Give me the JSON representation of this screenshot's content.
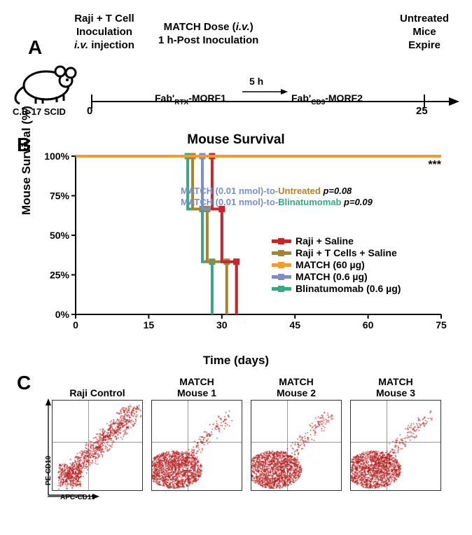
{
  "panelA": {
    "label": "A",
    "mouse_label": "C.B-17 SCID",
    "left_event": {
      "l1": "Raji + T Cell",
      "l2": "Inoculation",
      "l3": "i.v. injection",
      "html": "Raji + T Cell<br>Inoculation<br><span style=\"font-style:italic\">i.v.</span> injection"
    },
    "mid_event": {
      "l1": "MATCH Dose (i.v.)",
      "l2": "1 h-Post Inoculation",
      "html": "MATCH Dose (<span style=\"font-style:italic\">i.v.</span>)<br>1 h-Post Inoculation"
    },
    "right_event": {
      "l1": "Untreated",
      "l2": "Mice",
      "l3": "Expire",
      "html": "Untreated<br>Mice<br>Expire"
    },
    "rxn_left": "Fab'",
    "rxn_left_sub": "RTX",
    "rxn_left_tail": "-MORF1",
    "rxn_right": "Fab'",
    "rxn_right_sub": "CD3",
    "rxn_right_tail": "-MORF2",
    "rxn_time": "5 h",
    "t0": "0",
    "t1": "25",
    "mouse_color": "#000000",
    "timeline_color": "#000000"
  },
  "panelB": {
    "label": "B",
    "title": "Mouse Survival",
    "ylab": "Mouse Survival (%)",
    "xlab": "Time (days)",
    "xlim": [
      0,
      75
    ],
    "ylim": [
      0,
      100
    ],
    "xticks": [
      0,
      15,
      30,
      45,
      60,
      75
    ],
    "yticks": [
      0,
      25,
      50,
      75,
      100
    ],
    "yticklabels": [
      "0%",
      "25%",
      "50%",
      "75%",
      "100%"
    ],
    "axis_color": "#000000",
    "tick_fontsize": 14,
    "stars": "***",
    "stars_color": "#000000",
    "anno1": {
      "pre": "MATCH (0.01 nmol)-to-",
      "mid": "Untreated",
      "post": " p=0.08",
      "pre_color": "#7b8ec6",
      "mid_color": "#a8842c"
    },
    "anno2": {
      "pre": "MATCH (0.01 nmol)-to-",
      "mid": "Blinatumomab",
      "post": " p=0.09",
      "pre_color": "#7b8ec6",
      "mid_color": "#3aa781"
    },
    "legend": [
      {
        "label": "Raji + Saline",
        "color": "#c8262a"
      },
      {
        "label": "Raji + T Cells + Saline",
        "color": "#a8842c"
      },
      {
        "label": "MATCH (60 µg)",
        "color": "#f39b2f"
      },
      {
        "label": "MATCH (0.6 µg)",
        "color": "#7b8ec6"
      },
      {
        "label": "Blinatumomab (0.6 µg)",
        "color": "#3aa781"
      }
    ],
    "series": {
      "raji_saline": {
        "color": "#c8262a",
        "steps": [
          [
            0,
            100
          ],
          [
            28,
            100
          ],
          [
            28,
            66.6
          ],
          [
            30,
            66.6
          ],
          [
            30,
            33.3
          ],
          [
            33,
            33.3
          ],
          [
            33,
            0
          ]
        ]
      },
      "raji_t_saline": {
        "color": "#a8842c",
        "steps": [
          [
            0,
            100
          ],
          [
            24,
            100
          ],
          [
            24,
            66.6
          ],
          [
            27,
            66.6
          ],
          [
            27,
            33.3
          ],
          [
            31,
            33.3
          ],
          [
            31,
            0
          ]
        ]
      },
      "match60": {
        "color": "#f39b2f",
        "steps": [
          [
            0,
            100
          ],
          [
            75,
            100
          ]
        ]
      },
      "match06": {
        "color": "#7b8ec6",
        "steps": [
          [
            0,
            100
          ],
          [
            26,
            100
          ],
          [
            26,
            66.6
          ],
          [
            30,
            66.6
          ],
          [
            30,
            33.3
          ],
          [
            33,
            33.3
          ],
          [
            33,
            0
          ]
        ]
      },
      "blin": {
        "color": "#3aa781",
        "steps": [
          [
            0,
            100
          ],
          [
            23,
            100
          ],
          [
            23,
            66.6
          ],
          [
            26,
            66.6
          ],
          [
            26,
            33.3
          ],
          [
            28,
            33.3
          ],
          [
            28,
            0
          ]
        ]
      }
    },
    "line_width": 4,
    "marker_size": 9
  },
  "panelC": {
    "label": "C",
    "yaxis": "PE-CD10",
    "xaxis": "APC-CD19",
    "plots": [
      {
        "title": "Raji Control",
        "pattern": "diag",
        "dot_color": "#b21818"
      },
      {
        "title": "MATCH\nMouse 1",
        "pattern": "blob",
        "dot_color": "#b21818"
      },
      {
        "title": "MATCH\nMouse 2",
        "pattern": "blob",
        "dot_color": "#b21818"
      },
      {
        "title": "MATCH\nMouse 3",
        "pattern": "blob",
        "dot_color": "#b21818"
      }
    ],
    "quad_v": 0.4,
    "quad_h": 0.46,
    "border_color": "#333333",
    "grid_color": "#999999"
  }
}
